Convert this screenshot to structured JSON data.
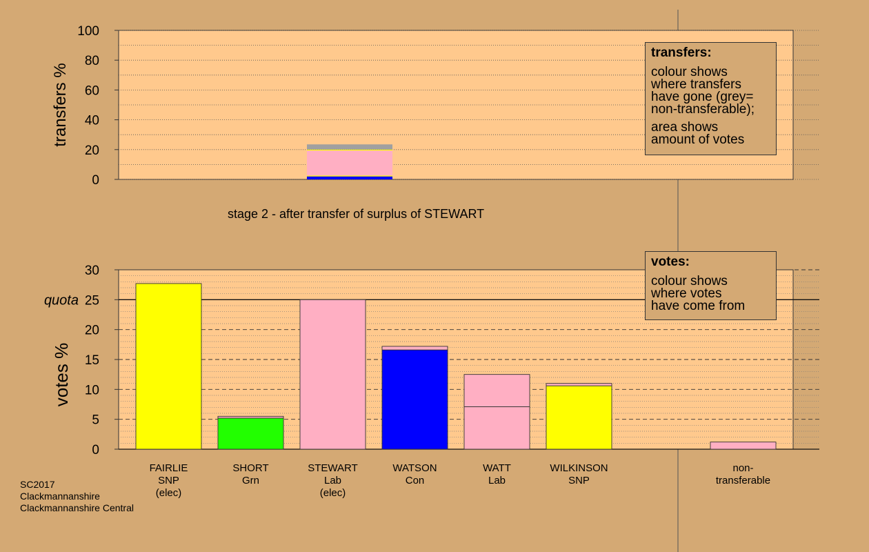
{
  "stage_title": "stage 2 - after transfer of surplus of STEWART",
  "footer": [
    "SC2017",
    "Clackmannanshire",
    "Clackmannanshire Central"
  ],
  "legend_transfers": {
    "title": "transfers:",
    "lines_a": [
      "colour shows",
      "where transfers",
      "have gone (grey=",
      "non-transferable);"
    ],
    "lines_b": [
      "area shows",
      "amount of votes"
    ]
  },
  "legend_votes": {
    "title": "votes:",
    "lines": [
      "colour shows",
      "where votes",
      "have come from"
    ]
  },
  "colors": {
    "background": "#d4a974",
    "plot_bg": "#ffc98d",
    "SNP": "#ffff00",
    "Grn": "#22ff00",
    "Lab": "#ffafc3",
    "Con": "#0000ff",
    "nontransferable": "#a0a0a0"
  },
  "chart_data": [
    {
      "type": "bar",
      "stacked": true,
      "ylabel": "transfers %",
      "ylim": [
        0,
        100
      ],
      "yticks": [
        0,
        20,
        40,
        60,
        80,
        100
      ],
      "grid": "dotted",
      "bars": [
        {
          "position": 3,
          "segments": [
            {
              "party": "Con",
              "value": 2.0
            },
            {
              "party": "SNP",
              "value": 0.6
            },
            {
              "party": "Lab",
              "value": 16.8
            },
            {
              "party": "SNP",
              "value": 0.6
            },
            {
              "party": "nontransferable",
              "value": 3.5
            }
          ]
        }
      ]
    },
    {
      "type": "bar",
      "stacked": true,
      "ylabel": "votes %",
      "ylim": [
        0,
        30
      ],
      "yticks": [
        0,
        5,
        10,
        15,
        20,
        25,
        30
      ],
      "quota": 25,
      "quota_label": "quota",
      "grid": "dashed",
      "categories": [
        {
          "name": "FAIRLIE",
          "party": "SNP",
          "note": "(elec)",
          "segments": [
            {
              "party": "SNP",
              "value": 27.7
            }
          ]
        },
        {
          "name": "SHORT",
          "party": "Grn",
          "note": "",
          "segments": [
            {
              "party": "Grn",
              "value": 5.2
            },
            {
              "party": "Lab",
              "value": 0.3
            }
          ]
        },
        {
          "name": "STEWART",
          "party": "Lab",
          "note": "(elec)",
          "segments": [
            {
              "party": "Lab",
              "value": 25.0
            }
          ]
        },
        {
          "name": "WATSON",
          "party": "Con",
          "note": "",
          "segments": [
            {
              "party": "Con",
              "value": 16.6
            },
            {
              "party": "Lab",
              "value": 0.6
            }
          ]
        },
        {
          "name": "WATT",
          "party": "Lab",
          "note": "",
          "segments": [
            {
              "party": "Lab",
              "value": 7.1
            },
            {
              "party": "Lab",
              "value": 5.4
            }
          ]
        },
        {
          "name": "WILKINSON",
          "party": "SNP",
          "note": "",
          "segments": [
            {
              "party": "SNP",
              "value": 10.6
            },
            {
              "party": "Lab",
              "value": 0.4
            }
          ]
        },
        {
          "name": "",
          "party": "",
          "note": "",
          "segments": []
        },
        {
          "name": "non-",
          "party": "transferable",
          "note": "",
          "segments": [
            {
              "party": "Lab",
              "value": 1.2
            }
          ]
        }
      ]
    }
  ]
}
